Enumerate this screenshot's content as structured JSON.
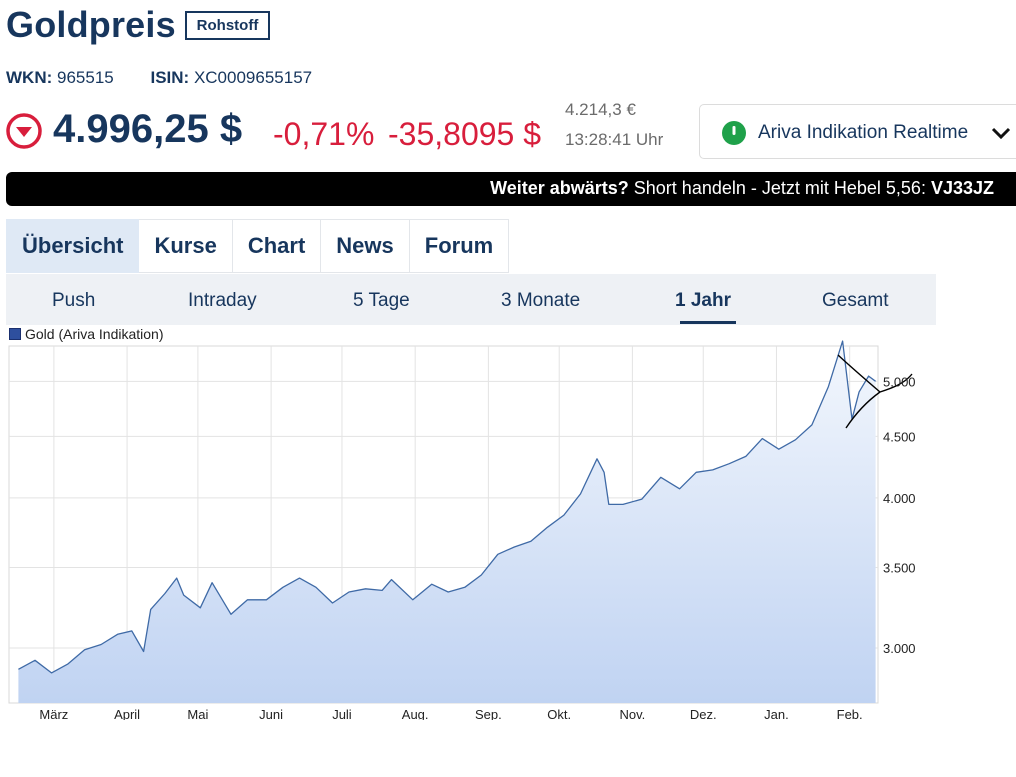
{
  "header": {
    "title": "Goldpreis",
    "badge": "Rohstoff",
    "wkn_label": "WKN:",
    "wkn": "965515",
    "isin_label": "ISIN:",
    "isin": "XC0009655157"
  },
  "quote": {
    "price": "4.996,25 $",
    "change_pct": "-0,71%",
    "change_abs": "-35,8095 $",
    "price_eur": "4.214,3 €",
    "time": "13:28:41 Uhr",
    "trend_icon": "arrow-down-circle-icon",
    "down_color": "#d81e3c"
  },
  "source": {
    "label": "Ariva Indikation Realtime",
    "status_color": "#1fa14a"
  },
  "promo": {
    "bold_prefix": "Weiter abwärts?",
    "text": " Short handeln - Jetzt mit Hebel 5,56: ",
    "code": "VJ33JZ"
  },
  "tabs": [
    "Übersicht",
    "Kurse",
    "Chart",
    "News",
    "Forum"
  ],
  "active_tab": "Übersicht",
  "subtabs": [
    "Push",
    "Intraday",
    "5 Tage",
    "3 Monate",
    "1 Jahr",
    "Gesamt"
  ],
  "active_subtab": "1 Jahr",
  "chart_data": {
    "type": "area",
    "legend": [
      "Gold (Ariva Indikation)"
    ],
    "x_tick_labels": [
      "März",
      "April",
      "Mai",
      "Juni",
      "Juli",
      "Aug.",
      "Sep.",
      "Okt.",
      "Nov.",
      "Dez.",
      "Jan.",
      "Feb."
    ],
    "y_tick_labels": [
      "3.000",
      "3.500",
      "4.000",
      "4.500",
      "5.000"
    ],
    "ylim": [
      2700,
      5350
    ],
    "y_scale": "log",
    "grid": true,
    "line_color": "#3f6aa6",
    "fill_top_color": "#f3f7fd",
    "fill_bottom_color": "#c0d3f2",
    "series": [
      {
        "name": "Gold (Ariva Indikation)",
        "x": [
          "2025-02-14",
          "2025-02-21",
          "2025-02-28",
          "2025-03-07",
          "2025-03-14",
          "2025-03-21",
          "2025-03-28",
          "2025-04-03",
          "2025-04-08",
          "2025-04-11",
          "2025-04-17",
          "2025-04-22",
          "2025-04-25",
          "2025-05-02",
          "2025-05-07",
          "2025-05-15",
          "2025-05-22",
          "2025-05-30",
          "2025-06-06",
          "2025-06-13",
          "2025-06-20",
          "2025-06-27",
          "2025-07-04",
          "2025-07-11",
          "2025-07-18",
          "2025-07-22",
          "2025-07-31",
          "2025-08-08",
          "2025-08-15",
          "2025-08-22",
          "2025-08-29",
          "2025-09-05",
          "2025-09-12",
          "2025-09-19",
          "2025-09-26",
          "2025-10-03",
          "2025-10-10",
          "2025-10-17",
          "2025-10-20",
          "2025-10-22",
          "2025-10-28",
          "2025-11-05",
          "2025-11-13",
          "2025-11-21",
          "2025-11-28",
          "2025-12-05",
          "2025-12-12",
          "2025-12-19",
          "2025-12-26",
          "2026-01-02",
          "2026-01-09",
          "2026-01-16",
          "2026-01-23",
          "2026-01-29",
          "2026-02-02",
          "2026-02-05",
          "2026-02-09",
          "2026-02-12"
        ],
        "y": [
          2880,
          2930,
          2860,
          2910,
          2990,
          3020,
          3080,
          3100,
          2980,
          3230,
          3330,
          3430,
          3320,
          3240,
          3400,
          3200,
          3290,
          3290,
          3370,
          3430,
          3370,
          3270,
          3340,
          3360,
          3350,
          3420,
          3290,
          3390,
          3340,
          3370,
          3450,
          3590,
          3640,
          3680,
          3780,
          3870,
          4030,
          4310,
          4200,
          3950,
          3950,
          3990,
          4160,
          4070,
          4200,
          4220,
          4270,
          4330,
          4480,
          4390,
          4470,
          4600,
          4950,
          5400,
          4650,
          4900,
          5050,
          5000
        ]
      }
    ]
  }
}
